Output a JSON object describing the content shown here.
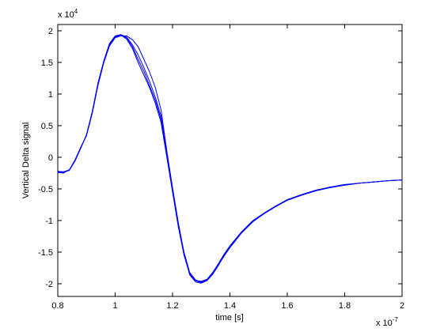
{
  "chart_data": {
    "type": "line",
    "title": "",
    "xlabel": "time [s]",
    "ylabel": "Vertical Delta signal",
    "x_exponent_label": "x 10",
    "x_exponent_power": "-7",
    "y_exponent_label": "x 10",
    "y_exponent_power": "4",
    "xlim": [
      8e-08,
      2e-07
    ],
    "ylim": [
      -22000.0,
      21000.0
    ],
    "x_ticks": [
      0.8,
      1.0,
      1.2,
      1.4,
      1.6,
      1.8,
      2.0
    ],
    "x_tick_labels": [
      "0.8",
      "1",
      "1.2",
      "1.4",
      "1.6",
      "1.8",
      "2"
    ],
    "y_ticks": [
      -2,
      -1.5,
      -1,
      -0.5,
      0,
      0.5,
      1,
      1.5,
      2
    ],
    "y_tick_labels": [
      "-2",
      "-1.5",
      "-1",
      "-0.5",
      "0",
      "0.5",
      "1",
      "1.5",
      "2"
    ],
    "grid": false,
    "line_color": "#0000ff",
    "x": [
      8e-08,
      8.2e-08,
      8.4e-08,
      8.6e-08,
      8.8e-08,
      9e-08,
      9.2e-08,
      9.4e-08,
      9.6e-08,
      9.8e-08,
      1e-07,
      1.02e-07,
      1.04e-07,
      1.06e-07,
      1.08e-07,
      1.1e-07,
      1.12e-07,
      1.14e-07,
      1.16e-07,
      1.18e-07,
      1.2e-07,
      1.22e-07,
      1.24e-07,
      1.26e-07,
      1.28e-07,
      1.3e-07,
      1.32e-07,
      1.34e-07,
      1.36e-07,
      1.38e-07,
      1.4e-07,
      1.44e-07,
      1.48e-07,
      1.52e-07,
      1.56e-07,
      1.6e-07,
      1.65e-07,
      1.7e-07,
      1.75e-07,
      1.8e-07,
      1.85e-07,
      1.9e-07,
      1.95e-07,
      2e-07
    ],
    "series": [
      {
        "values": [
          -2300,
          -2400,
          -2000,
          -500,
          1500,
          3500,
          7000,
          11500,
          15000,
          17800,
          19000,
          19300,
          18700,
          17200,
          15000,
          13000,
          11000,
          8500,
          5500,
          0,
          -5500,
          -11000,
          -15500,
          -18500,
          -19500,
          -19600,
          -19300,
          -18200,
          -16800,
          -15300,
          -14000,
          -11800,
          -10000,
          -8800,
          -7700,
          -6700,
          -5900,
          -5200,
          -4700,
          -4400,
          -4100,
          -3900,
          -3700,
          -3600
        ]
      },
      {
        "values": [
          -2300,
          -2300,
          -2100,
          -600,
          1400,
          3600,
          7200,
          11700,
          15200,
          18000,
          19200,
          19400,
          19000,
          17800,
          16200,
          14200,
          12000,
          9500,
          6500,
          500,
          -5000,
          -10500,
          -15000,
          -18200,
          -19400,
          -19700,
          -19400,
          -18400,
          -17000,
          -15600,
          -14300,
          -12000,
          -10200,
          -8900,
          -7800,
          -6800,
          -6000,
          -5300,
          -4800,
          -4400,
          -4100,
          -3900,
          -3700,
          -3600
        ]
      },
      {
        "values": [
          -2400,
          -2500,
          -2000,
          -400,
          1600,
          3400,
          6900,
          11300,
          14900,
          17600,
          18900,
          19200,
          19200,
          18600,
          17500,
          15500,
          13500,
          11000,
          7500,
          1000,
          -4800,
          -10300,
          -15200,
          -18600,
          -19700,
          -19900,
          -19500,
          -18500,
          -17100,
          -15500,
          -14100,
          -11900,
          -10100,
          -8800,
          -7700,
          -6700,
          -5900,
          -5200,
          -4700,
          -4300,
          -4100,
          -3900,
          -3700,
          -3600
        ]
      },
      {
        "values": [
          -2200,
          -2300,
          -2000,
          -500,
          1500,
          3500,
          7100,
          11600,
          15100,
          17900,
          19100,
          19300,
          18900,
          17500,
          15500,
          13600,
          11300,
          9000,
          6000,
          300,
          -5200,
          -10700,
          -15300,
          -18400,
          -19500,
          -19800,
          -19300,
          -18300,
          -16900,
          -15400,
          -14200,
          -11900,
          -10100,
          -8800,
          -7700,
          -6800,
          -5900,
          -5200,
          -4700,
          -4400,
          -4100,
          -3900,
          -3700,
          -3600
        ]
      }
    ]
  }
}
